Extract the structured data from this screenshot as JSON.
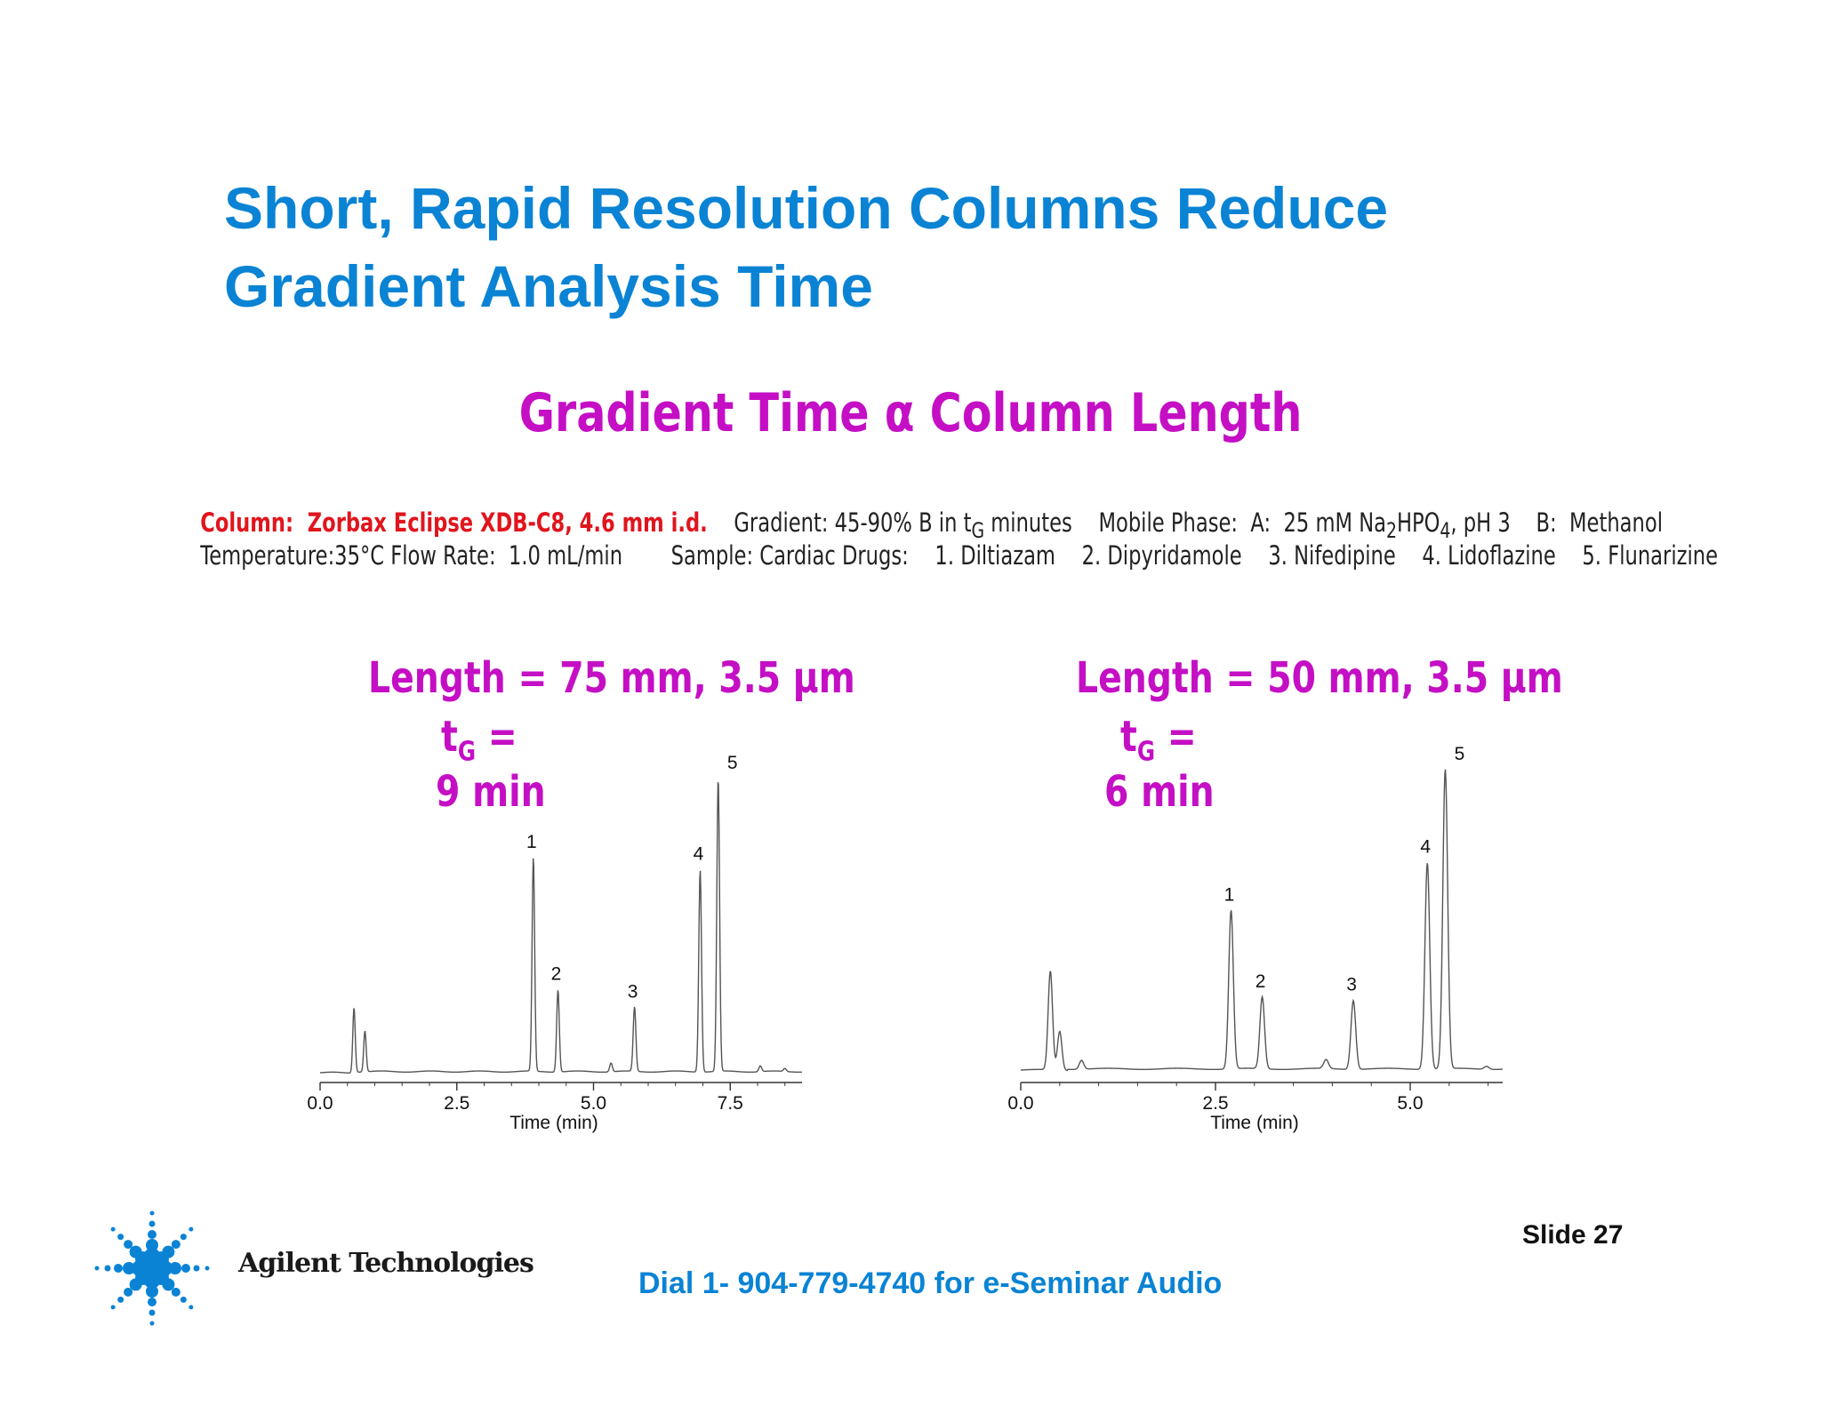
{
  "slide": {
    "title_line1": "Short, Rapid Resolution Columns Reduce",
    "title_line2": "Gradient Analysis Time",
    "subtitle": "Gradient Time α  Column Length",
    "conditions": {
      "column": "Column:  Zorbax Eclipse XDB-C8, 4.6 mm i.d.",
      "gradient": "Gradient: 45-90% B in t",
      "gradient_sub": "G",
      "gradient_end": " minutes",
      "mobile_phase": "Mobile Phase:  A:  25 mM Na",
      "mp_sub1": "2",
      "mp_mid": "HPO",
      "mp_sub2": "4",
      "mp_end": ", pH 3    B:  Methanol",
      "temperature": "Temperature:35°C Flow Rate:  1.0 mL/min",
      "sample": "Sample: Cardiac Drugs:",
      "compounds": [
        "1. Diltiazam",
        "2. Dipyridamole",
        "3. Nifedipine",
        "4. Lidoflazine",
        "5. Flunarizine"
      ]
    },
    "slide_number": "Slide 27",
    "dial_text": "Dial 1- 904-779-4740 for e-Seminar Audio",
    "brand": "Agilent Technologies",
    "colors": {
      "title": "#0a83d4",
      "subtitle": "#c40fc4",
      "column_text": "#e0151d"
    }
  },
  "chart_data": [
    {
      "type": "line",
      "panel": "left",
      "heading_line1": "Length  = 75 mm, 3.5 μm",
      "heading_t": "t",
      "heading_sub": "G",
      "heading_eq": "  =",
      "heading_line3": "9 min",
      "xlabel": "Time (min)",
      "xlim": [
        0,
        8.9
      ],
      "ylim": [
        0,
        1.0
      ],
      "ticks": [
        0,
        2.5,
        5.0,
        7.5
      ],
      "tick_labels": [
        "0.0",
        "2.5",
        "5.0",
        "7.5"
      ],
      "peaks": [
        {
          "label": "1",
          "t": 3.9,
          "height": 0.73
        },
        {
          "label": "2",
          "t": 4.35,
          "height": 0.28
        },
        {
          "label": "3",
          "t": 5.75,
          "height": 0.22
        },
        {
          "label": "4",
          "t": 6.95,
          "height": 0.69
        },
        {
          "label": "5",
          "t": 7.28,
          "height": 1.0
        }
      ],
      "minor_peaks": [
        {
          "t": 0.62,
          "height": 0.22
        },
        {
          "t": 0.82,
          "height": 0.14
        },
        {
          "t": 5.32,
          "height": 0.03
        },
        {
          "t": 8.05,
          "height": 0.02
        },
        {
          "t": 8.5,
          "height": 0.01
        }
      ]
    },
    {
      "type": "line",
      "panel": "right",
      "heading_line1": "Length  = 50 mm, 3.5 μm",
      "heading_t": "t",
      "heading_sub": "G",
      "heading_eq": "  =",
      "heading_line3": "6 min",
      "xlabel": "Time (min)",
      "xlim": [
        0,
        6.2
      ],
      "ylim": [
        0,
        1.0
      ],
      "ticks": [
        0,
        2.5,
        5.0
      ],
      "tick_labels": [
        "0.0",
        "2.5",
        "5.0"
      ],
      "peaks": [
        {
          "label": "1",
          "t": 2.7,
          "height": 0.53
        },
        {
          "label": "2",
          "t": 3.1,
          "height": 0.24
        },
        {
          "label": "3",
          "t": 4.27,
          "height": 0.23
        },
        {
          "label": "4",
          "t": 5.22,
          "height": 0.69
        },
        {
          "label": "5",
          "t": 5.45,
          "height": 1.0
        }
      ],
      "minor_peaks": [
        {
          "t": 0.38,
          "height": 0.33
        },
        {
          "t": 0.5,
          "height": 0.13
        },
        {
          "t": 0.78,
          "height": 0.03
        },
        {
          "t": 3.92,
          "height": 0.03
        },
        {
          "t": 5.98,
          "height": 0.01
        }
      ]
    }
  ]
}
